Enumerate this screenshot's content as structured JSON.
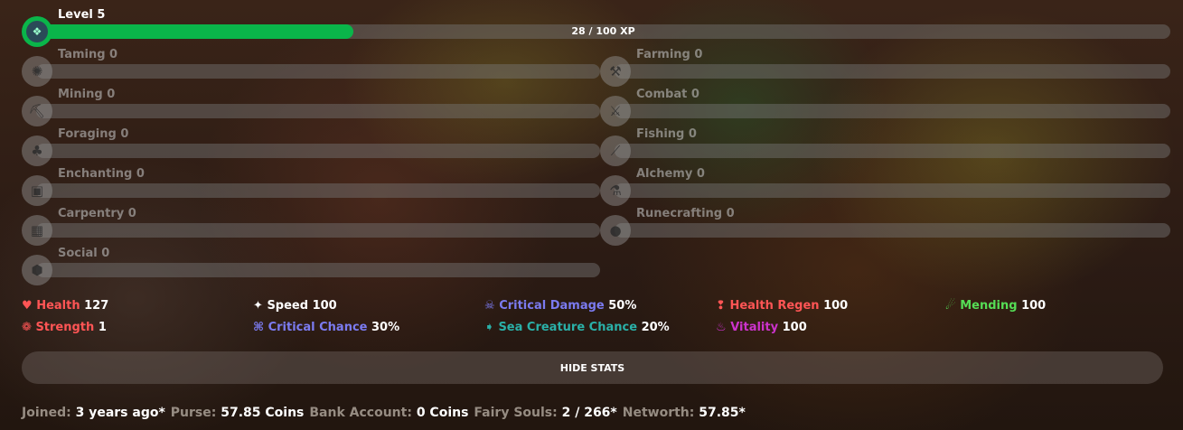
{
  "level": {
    "label": "Level 5",
    "xp_text": "28 / 100 XP",
    "progress": 0.28
  },
  "skills_left": [
    {
      "label": "Taming 0",
      "icon": "taming-icon",
      "glyph": "✺"
    },
    {
      "label": "Mining 0",
      "icon": "pickaxe-icon",
      "glyph": "⛏"
    },
    {
      "label": "Foraging 0",
      "icon": "sapling-icon",
      "glyph": "♣"
    },
    {
      "label": "Enchanting 0",
      "icon": "enchanting-table-icon",
      "glyph": "▣"
    },
    {
      "label": "Carpentry 0",
      "icon": "crafting-table-icon",
      "glyph": "▦"
    },
    {
      "label": "Social 0",
      "icon": "emerald-icon",
      "glyph": "⬢"
    }
  ],
  "skills_right": [
    {
      "label": "Farming 0",
      "icon": "hoe-icon",
      "glyph": "⚒"
    },
    {
      "label": "Combat 0",
      "icon": "sword-icon",
      "glyph": "⚔"
    },
    {
      "label": "Fishing 0",
      "icon": "fishing-rod-icon",
      "glyph": "⟋"
    },
    {
      "label": "Alchemy 0",
      "icon": "brewing-stand-icon",
      "glyph": "⚗"
    },
    {
      "label": "Runecrafting 0",
      "icon": "magma-cream-icon",
      "glyph": "●"
    }
  ],
  "stats": [
    {
      "name": "Health",
      "value": "127",
      "icon": "heart-icon",
      "glyph": "♥",
      "color": "#ff5555"
    },
    {
      "name": "Speed",
      "value": "100",
      "icon": "speed-star-icon",
      "glyph": "✦",
      "color": "#ffffff"
    },
    {
      "name": "Critical Damage",
      "value": "50%",
      "icon": "skull-icon",
      "glyph": "☠",
      "color": "#7b7bf0"
    },
    {
      "name": "Health Regen",
      "value": "100",
      "icon": "health-regen-icon",
      "glyph": "❢",
      "color": "#ff5555"
    },
    {
      "name": "Mending",
      "value": "100",
      "icon": "mending-icon",
      "glyph": "☄",
      "color": "#55dd55"
    },
    {
      "name": "Strength",
      "value": "1",
      "icon": "strength-icon",
      "glyph": "❁",
      "color": "#ff5555"
    },
    {
      "name": "Critical Chance",
      "value": "30%",
      "icon": "crit-chance-icon",
      "glyph": "⌘",
      "color": "#7b7bf0"
    },
    {
      "name": "Sea Creature Chance",
      "value": "20%",
      "icon": "sea-creature-icon",
      "glyph": "➧",
      "color": "#2ab0a8"
    },
    {
      "name": "Vitality",
      "value": "100",
      "icon": "vitality-icon",
      "glyph": "♨",
      "color": "#cc33cc"
    }
  ],
  "hide_stats_label": "HIDE STATS",
  "footer": [
    {
      "key": "Joined:",
      "value": "3 years ago*"
    },
    {
      "key": "Purse:",
      "value": "57.85 Coins"
    },
    {
      "key": "Bank Account:",
      "value": "0 Coins"
    },
    {
      "key": "Fairy Souls:",
      "value": "2 / 266*"
    },
    {
      "key": "Networth:",
      "value": "57.85*"
    }
  ]
}
